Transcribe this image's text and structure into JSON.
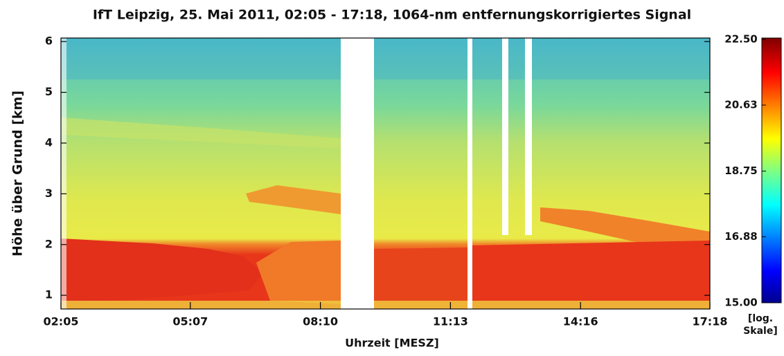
{
  "chart_data": {
    "type": "heatmap",
    "title": "IfT Leipzig, 25. Mai 2011, 02:05 - 17:18, 1064-nm entfernungskorrigiertes Signal",
    "x_label": "Uhrzeit [MESZ]",
    "y_label": "Höhe über Grund [km]",
    "xlim": [
      125,
      1038
    ],
    "xticks": [
      {
        "value": 125,
        "label": "02:05"
      },
      {
        "value": 307,
        "label": "05:07"
      },
      {
        "value": 490,
        "label": "08:10"
      },
      {
        "value": 673,
        "label": "11:13"
      },
      {
        "value": 856,
        "label": "14:16"
      },
      {
        "value": 1038,
        "label": "17:18"
      }
    ],
    "ylim": [
      0.73,
      6.07
    ],
    "yticks": [
      1,
      2,
      3,
      4,
      5,
      6
    ],
    "colorbar": {
      "lim": [
        15,
        22.5
      ],
      "ticks": [
        {
          "value": 22.5,
          "label": "22.50"
        },
        20.63,
        18.75,
        16.88,
        {
          "value": 15,
          "label": "15.00"
        }
      ],
      "label_lines": [
        "[log.",
        "Skale]"
      ]
    }
  }
}
